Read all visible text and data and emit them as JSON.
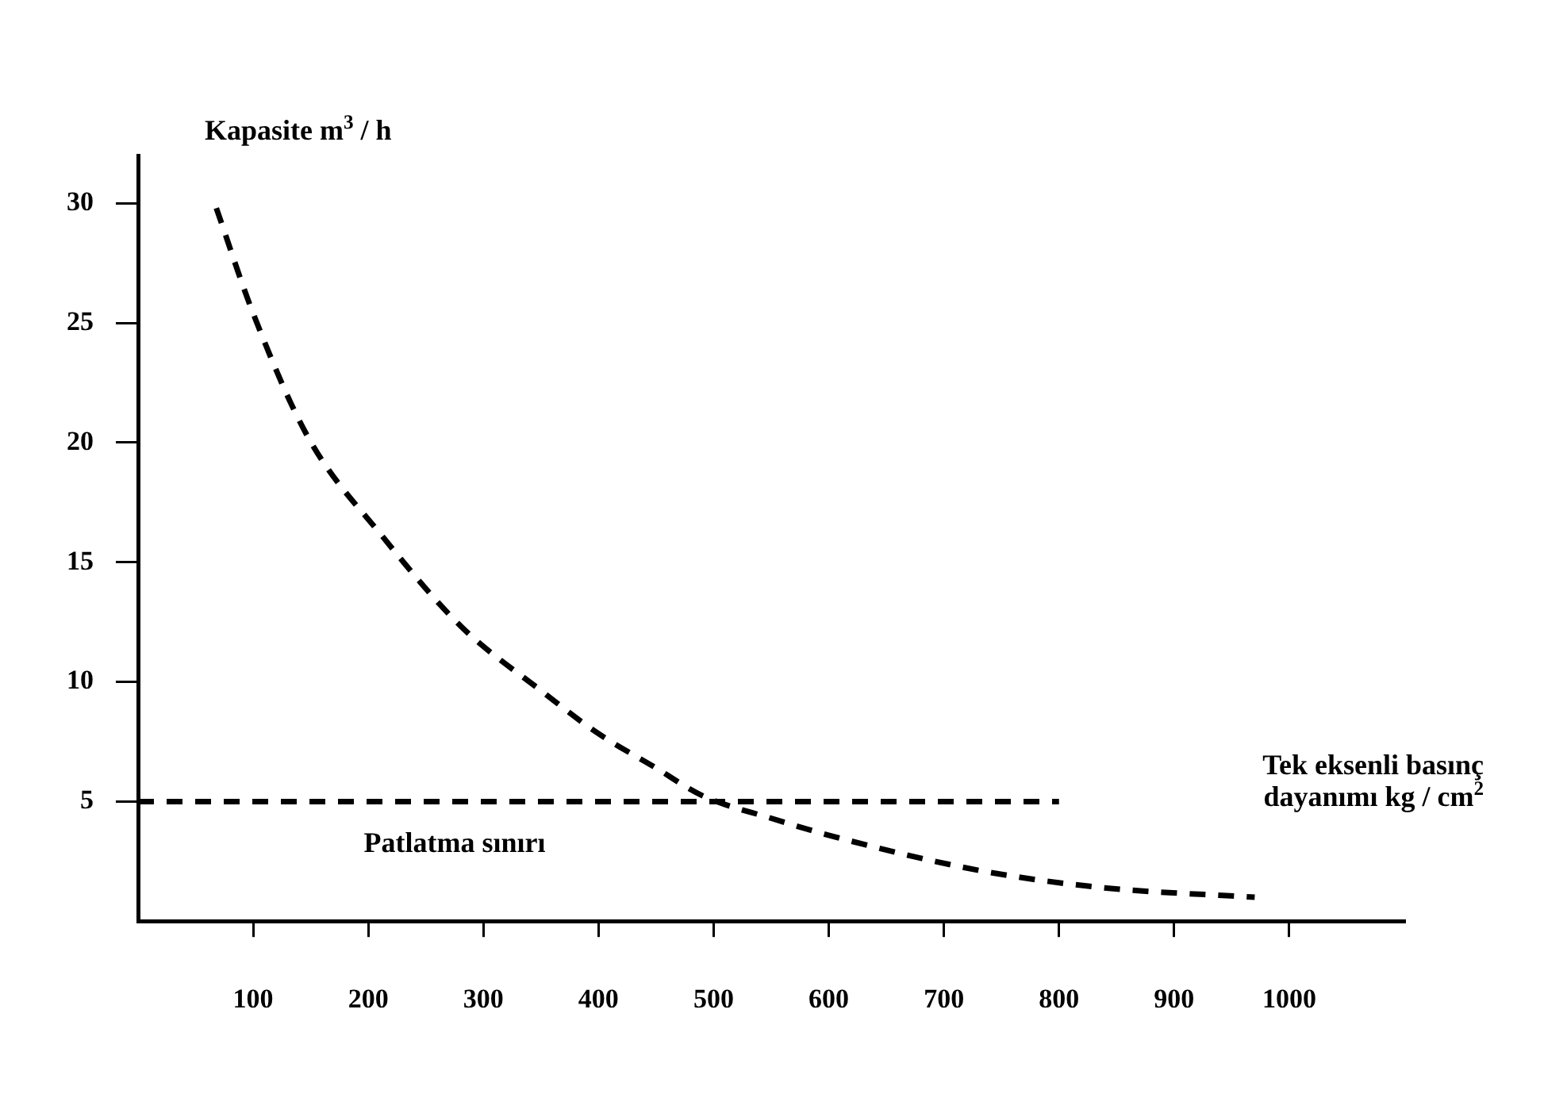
{
  "chart_data": {
    "type": "line",
    "ylabel": "Kapasite m$^{3}$ / h",
    "xlabel": "Tek eksenli basınç dayanımı kg / cm$^{2}$",
    "series": [
      {
        "color": "#000000",
        "line_style": "dashed",
        "x": [
          68,
          100,
          148,
          212,
          281,
          351,
          398,
          450,
          490,
          550,
          607,
          733,
          838,
          970
        ],
        "values": [
          29.8,
          25.4,
          20.2,
          16.1,
          12.3,
          9.6,
          7.9,
          6.4,
          5.25,
          4.3,
          3.5,
          2.1,
          1.4,
          1.0
        ]
      },
      {
        "color": "#000000",
        "line_style": "dashed",
        "x": [
          0,
          800
        ],
        "values": [
          5,
          5
        ]
      }
    ],
    "annotations": [
      "Patlatma sınırı"
    ],
    "xlim": [
      0,
      1100
    ],
    "xticks": [
      100,
      200,
      300,
      400,
      500,
      600,
      700,
      800,
      900,
      1000
    ],
    "ylim": [
      0,
      32
    ],
    "yticks": [
      5,
      10,
      15,
      20,
      25,
      30
    ],
    "grid": false,
    "legend": false,
    "marker": "none"
  }
}
